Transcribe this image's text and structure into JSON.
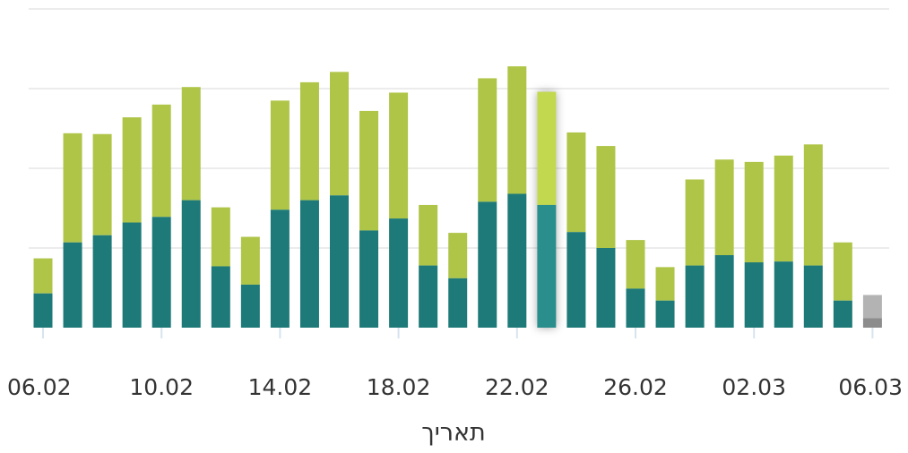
{
  "chart_data": {
    "type": "bar",
    "stacked": true,
    "xlabel": "תאריך",
    "ylim": [
      0,
      4
    ],
    "grid": true,
    "tick_labels": [
      "06.02",
      "10.02",
      "14.02",
      "18.02",
      "22.02",
      "26.02",
      "02.03",
      "06.03"
    ],
    "tick_indices": [
      0,
      4,
      8,
      12,
      16,
      20,
      24,
      28
    ],
    "categories": [
      "06.02",
      "07.02",
      "08.02",
      "09.02",
      "10.02",
      "11.02",
      "12.02",
      "13.02",
      "14.02",
      "15.02",
      "16.02",
      "17.02",
      "18.02",
      "19.02",
      "20.02",
      "21.02",
      "22.02",
      "23.02",
      "24.02",
      "25.02",
      "26.02",
      "27.02",
      "28.02",
      "01.03",
      "02.03",
      "03.03",
      "04.03",
      "05.03",
      "06.03"
    ],
    "highlighted_index": 17,
    "series": [
      {
        "values": [
          0.43,
          1.07,
          1.16,
          1.32,
          1.39,
          1.6,
          0.77,
          0.54,
          1.48,
          1.6,
          1.66,
          1.22,
          1.37,
          0.78,
          0.62,
          1.58,
          1.68,
          1.54,
          1.2,
          1.0,
          0.49,
          0.34,
          0.78,
          0.91,
          0.82,
          0.83,
          0.78,
          0.34,
          0.12
        ]
      },
      {
        "values": [
          0.44,
          1.37,
          1.27,
          1.32,
          1.41,
          1.42,
          0.74,
          0.6,
          1.37,
          1.48,
          1.55,
          1.5,
          1.58,
          0.76,
          0.57,
          1.55,
          1.6,
          1.42,
          1.25,
          1.28,
          0.61,
          0.42,
          1.08,
          1.2,
          1.26,
          1.33,
          1.52,
          0.73,
          0.29
        ]
      }
    ],
    "colors": {
      "series0": "#1e7a78",
      "series1": "#afc548",
      "series0_highlight": "#2a8f8c",
      "series1_highlight": "#c2d84f",
      "partial_lower": "#8c8c8c",
      "partial_upper": "#b3b3b3"
    }
  }
}
